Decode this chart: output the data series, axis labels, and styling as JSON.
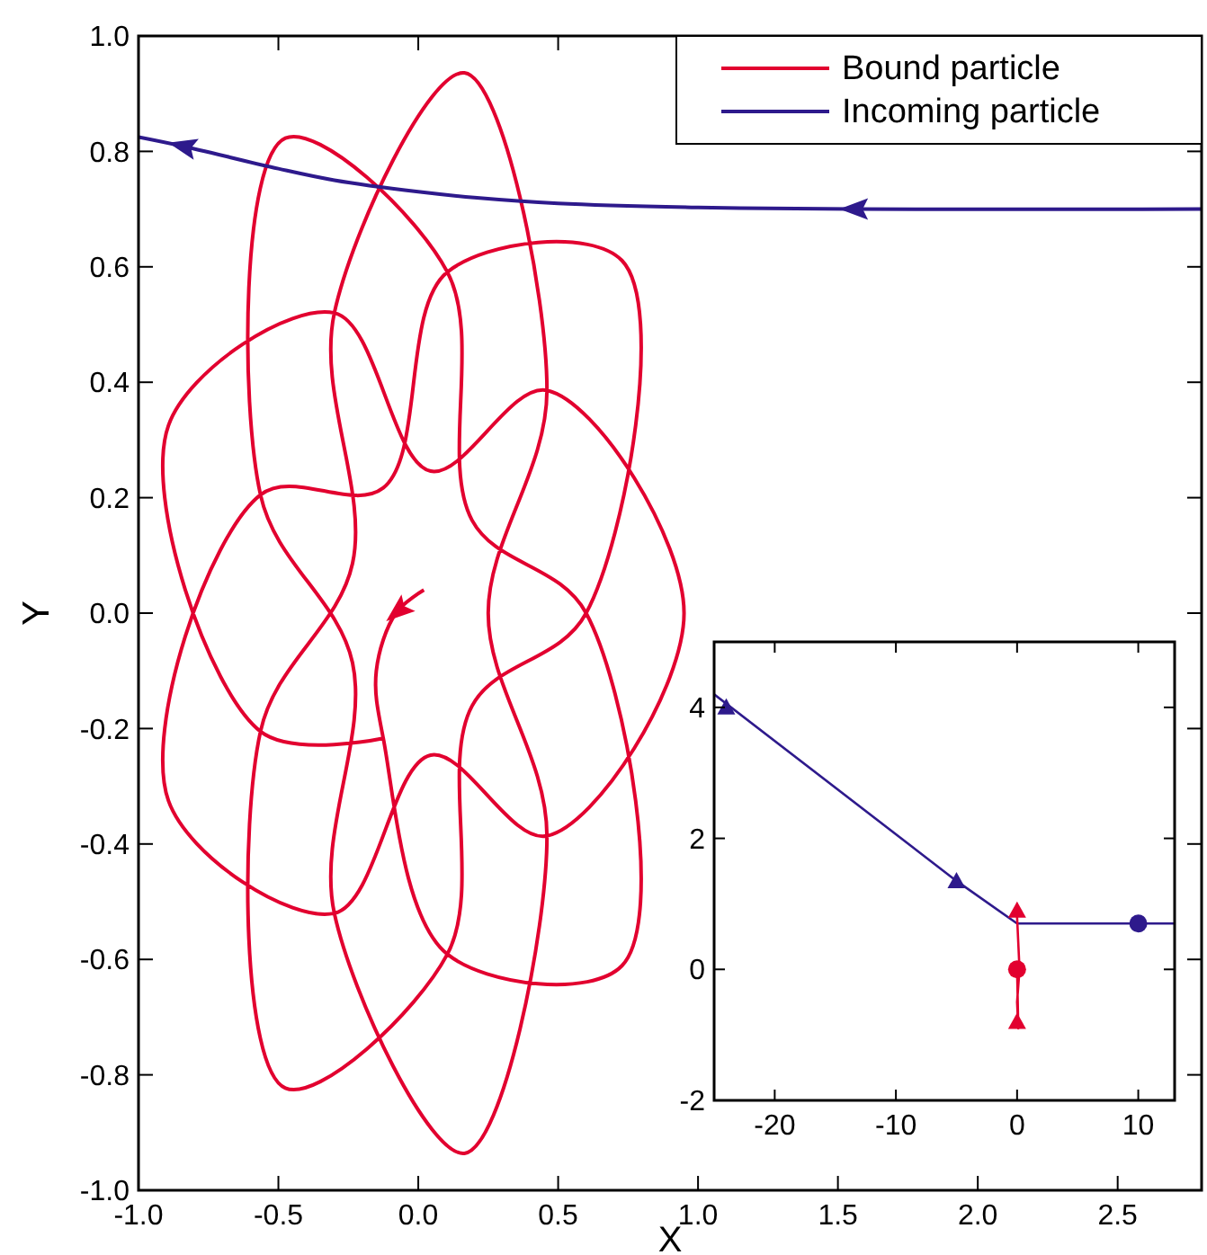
{
  "chart_data": [
    {
      "type": "line",
      "xlabel": "X",
      "ylabel": "Y",
      "xlim": [
        -1,
        2.8
      ],
      "ylim": [
        -1,
        1
      ],
      "xticks": [
        {
          "value": -1,
          "label": "-1.0"
        },
        {
          "value": -0.5,
          "label": "-0.5"
        },
        {
          "value": 0,
          "label": "0.0"
        },
        {
          "value": 0.5,
          "label": "0.5"
        },
        {
          "value": 1,
          "label": "1.0"
        },
        {
          "value": 1.5,
          "label": "1.5"
        },
        {
          "value": 2,
          "label": "2.0"
        },
        {
          "value": 2.5,
          "label": "2.5"
        }
      ],
      "yticks": [
        {
          "value": -1,
          "label": "-1.0"
        },
        {
          "value": -0.8,
          "label": "-0.8"
        },
        {
          "value": -0.6,
          "label": "-0.6"
        },
        {
          "value": -0.4,
          "label": "-0.4"
        },
        {
          "value": -0.2,
          "label": "-0.2"
        },
        {
          "value": 0,
          "label": "0.0"
        },
        {
          "value": 0.2,
          "label": "0.2"
        },
        {
          "value": 0.4,
          "label": "0.4"
        },
        {
          "value": 0.6,
          "label": "0.6"
        },
        {
          "value": 0.8,
          "label": "0.8"
        },
        {
          "value": 1,
          "label": "1.0"
        }
      ],
      "legend": "top right",
      "series": [
        {
          "name": "Bound particle",
          "color": "#e2002f",
          "x": [
            0.02,
            -0.08,
            -0.15,
            -0.125,
            0.104,
            0.728,
            0.6,
            0.192,
            0.104,
            -0.475,
            -0.564,
            -0.235,
            -0.3,
            0.165,
            0.46,
            0.25,
            0.46,
            0.165,
            -0.3,
            -0.235,
            -0.564,
            -0.475,
            0.104,
            0.192,
            0.6,
            0.728,
            0.104,
            -0.125,
            -0.564,
            -0.893,
            -0.3,
            0.044,
            0.46,
            0.95,
            0.46,
            0.044,
            -0.3,
            -0.893,
            -0.564,
            -0.125
          ],
          "values": [
            0.04,
            0,
            -0.1,
            -0.217,
            -0.591,
            -0.611,
            0,
            0.161,
            0.591,
            0.823,
            0.205,
            -0.086,
            -0.52,
            -0.936,
            -0.386,
            0,
            0.386,
            0.936,
            0.52,
            0.086,
            -0.205,
            -0.823,
            -0.591,
            -0.161,
            0,
            0.611,
            0.591,
            0.217,
            0.205,
            -0.325,
            -0.52,
            -0.246,
            -0.386,
            0,
            0.386,
            0.246,
            0.52,
            0.325,
            -0.205,
            -0.217
          ]
        },
        {
          "name": "Incoming particle",
          "color": "#2e1a8c",
          "x": [
            2.8,
            1.55,
            1.0,
            0.5,
            0.2,
            0,
            -0.3,
            -0.5,
            -0.85,
            -1.0
          ],
          "values": [
            0.7,
            0.7,
            0.703,
            0.71,
            0.72,
            0.73,
            0.75,
            0.77,
            0.81,
            0.825
          ]
        }
      ]
    },
    {
      "type": "line",
      "xlim": [
        -25,
        13
      ],
      "ylim": [
        -2,
        5
      ],
      "xticks": [
        -20,
        -10,
        0,
        10
      ],
      "yticks": [
        -2,
        0,
        2,
        4
      ],
      "legend": false,
      "series": [
        {
          "color": "#2e1a8c",
          "x": [
            -25,
            -5,
            0,
            13
          ],
          "values": [
            4.2,
            1.35,
            0.7,
            0.7
          ]
        },
        {
          "type": "scatter",
          "color": "#2e1a8c",
          "marker": "triangle",
          "x": [
            -24,
            -5
          ],
          "values": [
            4,
            1.35
          ]
        },
        {
          "type": "scatter",
          "color": "#2e1a8c",
          "marker": "circle",
          "x": [
            10
          ],
          "values": [
            0.7
          ]
        },
        {
          "color": "#e2002f",
          "x": [
            0,
            0.2,
            0,
            0.1,
            0
          ],
          "values": [
            0.8,
            0,
            -0.5,
            -0.9,
            0
          ]
        },
        {
          "type": "scatter",
          "color": "#e2002f",
          "marker": "circle",
          "x": [
            0
          ],
          "values": [
            0
          ]
        },
        {
          "type": "scatter",
          "color": "#e2002f",
          "marker": "triangle",
          "x": [
            0,
            0
          ],
          "values": [
            0.9,
            -0.8
          ]
        }
      ]
    }
  ]
}
